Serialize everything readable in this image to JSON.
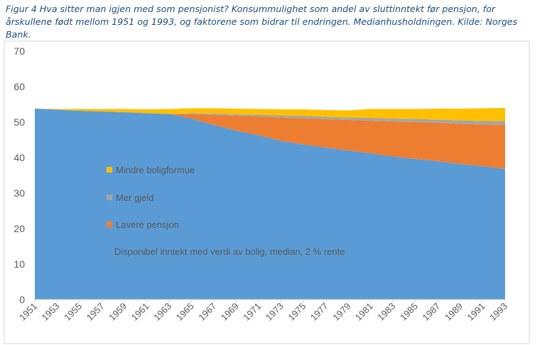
{
  "caption": "Figur 4 Hva sitter man igjen med som pensjonist? Konsummulighet som andel av sluttinntekt før pensjon, for årskullene født mellom 1951 og 1993, og faktorene som bidrar til endringen. Medianhusholdningen. Kilde: Norges Bank.",
  "colors": {
    "base": "#5b9bd5",
    "pension": "#ed7d31",
    "debt": "#a5a5a5",
    "housing": "#ffc000"
  },
  "chart_data": {
    "type": "area",
    "stacked": true,
    "title": "",
    "xlabel": "",
    "ylabel": "",
    "ylim": [
      0,
      70
    ],
    "yticks": [
      0,
      10,
      20,
      30,
      40,
      50,
      60,
      70
    ],
    "x": [
      1951,
      1953,
      1955,
      1957,
      1959,
      1961,
      1963,
      1965,
      1967,
      1969,
      1971,
      1973,
      1975,
      1977,
      1979,
      1981,
      1983,
      1985,
      1987,
      1989,
      1991,
      1993
    ],
    "xtick_labels": [
      "1951",
      "1953",
      "1955",
      "1957",
      "1959",
      "1961",
      "1963",
      "1965",
      "1967",
      "1969",
      "1971",
      "1973",
      "1975",
      "1977",
      "1979",
      "1981",
      "1983",
      "1985",
      "1987",
      "1989",
      "1991",
      "1993"
    ],
    "series": [
      {
        "name": "Disponibel inntekt med verdi av bolig, median, 2 % rente",
        "color_key": "base",
        "values": [
          53.8,
          53.5,
          53.2,
          53.0,
          52.8,
          52.5,
          52.3,
          51.0,
          49.2,
          47.6,
          46.3,
          44.7,
          43.7,
          42.8,
          42.0,
          41.2,
          40.3,
          39.6,
          39.0,
          38.2,
          37.6,
          36.8
        ]
      },
      {
        "name": "Lavere pensjon",
        "color_key": "pension",
        "values": [
          0,
          0,
          0,
          0,
          0,
          0,
          0,
          1.2,
          2.8,
          4.2,
          5.3,
          6.6,
          7.4,
          8.0,
          8.6,
          9.2,
          9.9,
          10.4,
          10.8,
          11.3,
          11.7,
          12.4
        ]
      },
      {
        "name": "Mer gjeld",
        "color_key": "debt",
        "values": [
          0,
          0,
          0,
          0,
          0,
          0,
          0,
          0.3,
          0.4,
          0.4,
          0.5,
          0.6,
          0.7,
          0.7,
          0.7,
          0.8,
          0.8,
          0.9,
          0.9,
          1.0,
          1.0,
          1.1
        ]
      },
      {
        "name": "Mindre boligformue",
        "color_key": "housing",
        "values": [
          0,
          0.2,
          0.5,
          0.7,
          0.9,
          1.1,
          1.4,
          1.4,
          1.5,
          1.6,
          1.6,
          1.7,
          1.8,
          1.9,
          2.0,
          2.5,
          2.7,
          2.8,
          3.1,
          3.3,
          3.6,
          3.7
        ]
      }
    ],
    "legend": {
      "placement": "inside-left",
      "entries": [
        {
          "label": "Mindre boligformue",
          "color_key": "housing"
        },
        {
          "label": "Mer gjeld",
          "color_key": "debt"
        },
        {
          "label": "Lavere pensjon",
          "color_key": "pension"
        },
        {
          "label": "Disponibel inntekt med verdi av bolig, median, 2 % rente",
          "color_key": "base"
        }
      ]
    },
    "grid": false
  }
}
